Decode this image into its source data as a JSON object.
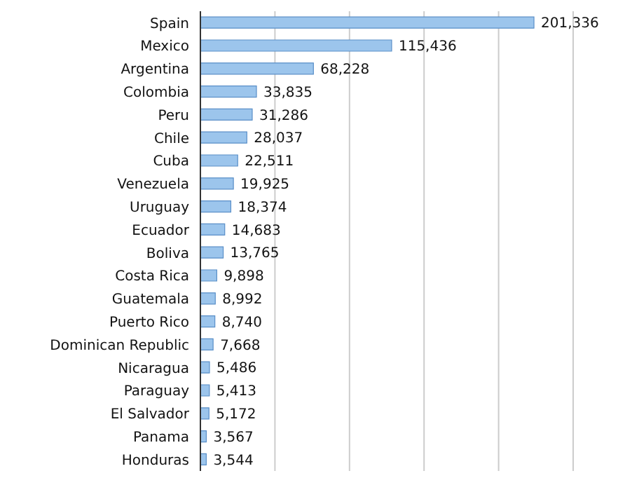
{
  "chart_data": {
    "type": "bar",
    "orientation": "horizontal",
    "categories": [
      "Spain",
      "Mexico",
      "Argentina",
      "Colombia",
      "Peru",
      "Chile",
      "Cuba",
      "Venezuela",
      "Uruguay",
      "Ecuador",
      "Boliva",
      "Costa Rica",
      "Guatemala",
      "Puerto Rico",
      "Dominican Republic",
      "Nicaragua",
      "Paraguay",
      "El Salvador",
      "Panama",
      "Honduras"
    ],
    "values": [
      201336,
      115436,
      68228,
      33835,
      31286,
      28037,
      22511,
      19925,
      18374,
      14683,
      13765,
      9898,
      8992,
      8740,
      7668,
      5486,
      5413,
      5172,
      3567,
      3544
    ],
    "value_labels": [
      "201,336",
      "115,436",
      "68,228",
      "33,835",
      "31,286",
      "28,037",
      "22,511",
      "19,925",
      "18,374",
      "14,683",
      "13,765",
      "9,898",
      "8,992",
      "8,740",
      "7,668",
      "5,486",
      "5,413",
      "5,172",
      "3,567",
      "3,544"
    ],
    "color": "#9cc5ec",
    "grid": "x",
    "tick_labels": "y"
  }
}
